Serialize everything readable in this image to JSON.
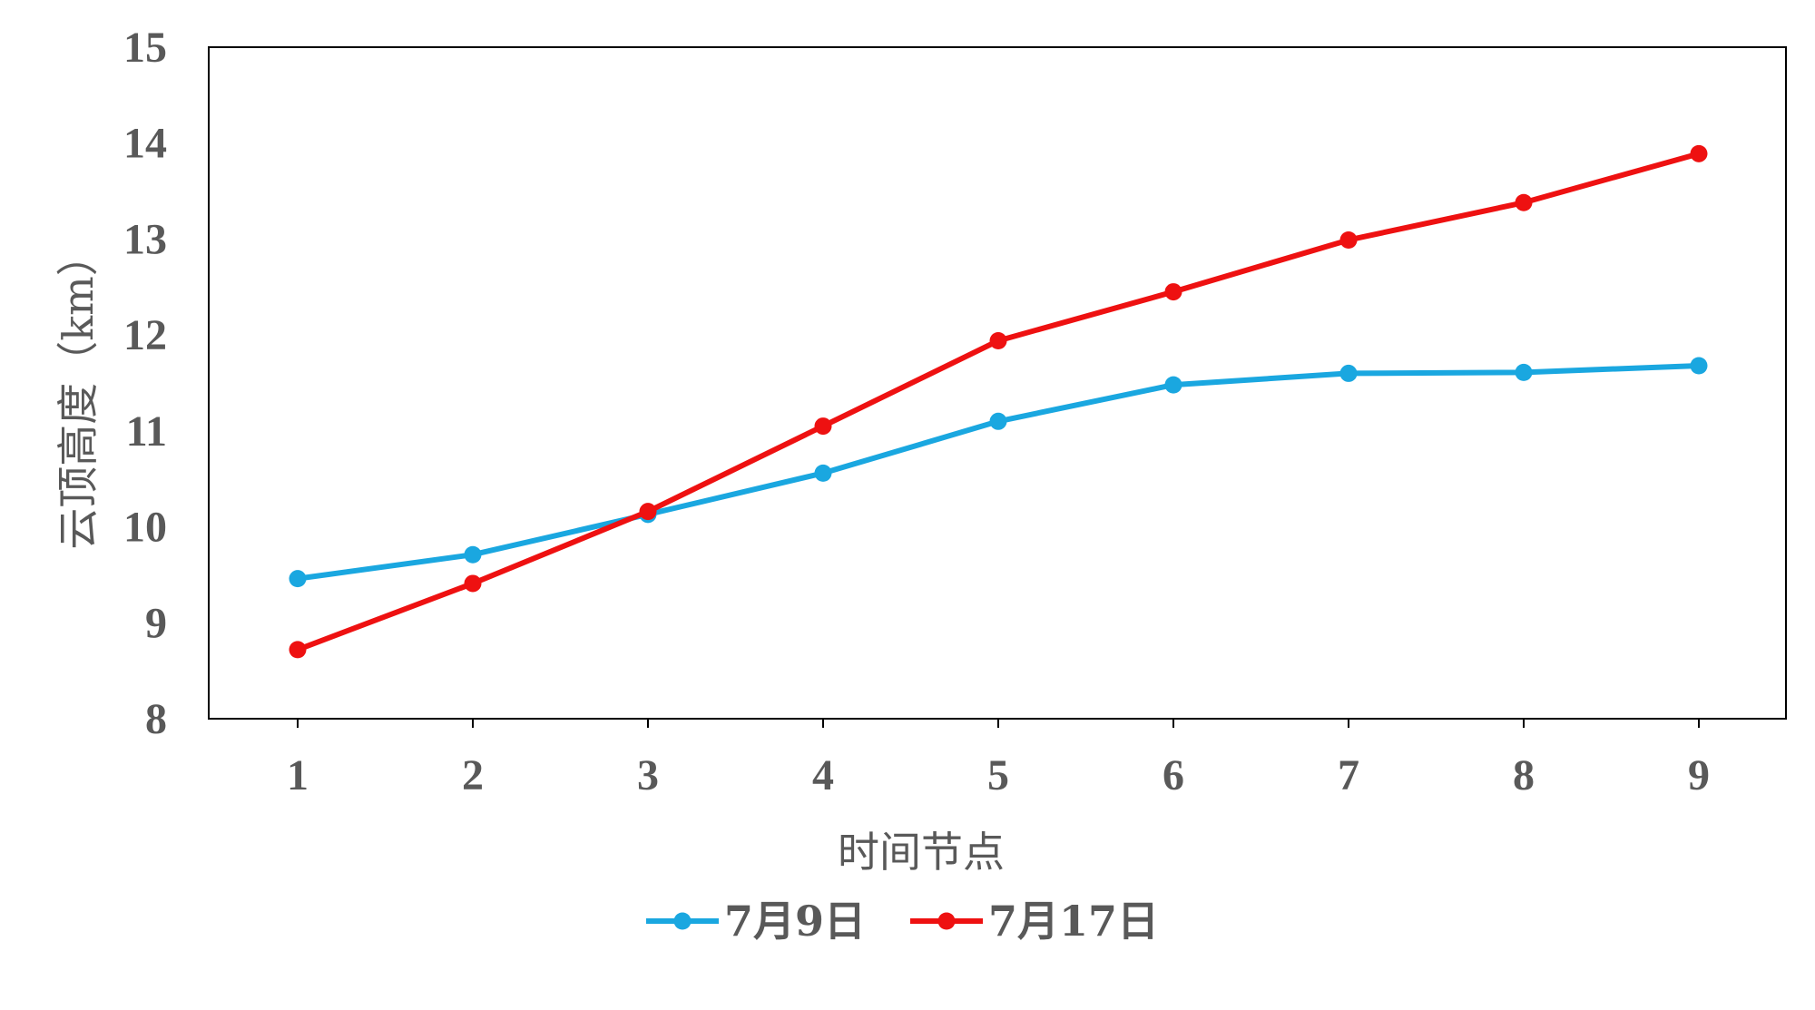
{
  "chart_data": {
    "type": "line",
    "title": "",
    "xlabel": "时间节点",
    "ylabel": "云顶高度（km）",
    "x": [
      1,
      2,
      3,
      4,
      5,
      6,
      7,
      8,
      9
    ],
    "xticks": [
      "1",
      "2",
      "3",
      "4",
      "5",
      "6",
      "7",
      "8",
      "9"
    ],
    "ylim": [
      8,
      15
    ],
    "yticks": [
      "8",
      "9",
      "10",
      "11",
      "12",
      "13",
      "14",
      "15"
    ],
    "grid": false,
    "legend_position": "bottom",
    "series": [
      {
        "name": "7月9日",
        "color": "#1aa7e0",
        "values": [
          9.46,
          9.71,
          10.13,
          10.56,
          11.1,
          11.48,
          11.6,
          11.61,
          11.68
        ]
      },
      {
        "name": "7月17日",
        "color": "#ee1111",
        "values": [
          8.72,
          9.41,
          10.16,
          11.05,
          11.94,
          12.45,
          12.99,
          13.38,
          13.89
        ]
      }
    ]
  }
}
